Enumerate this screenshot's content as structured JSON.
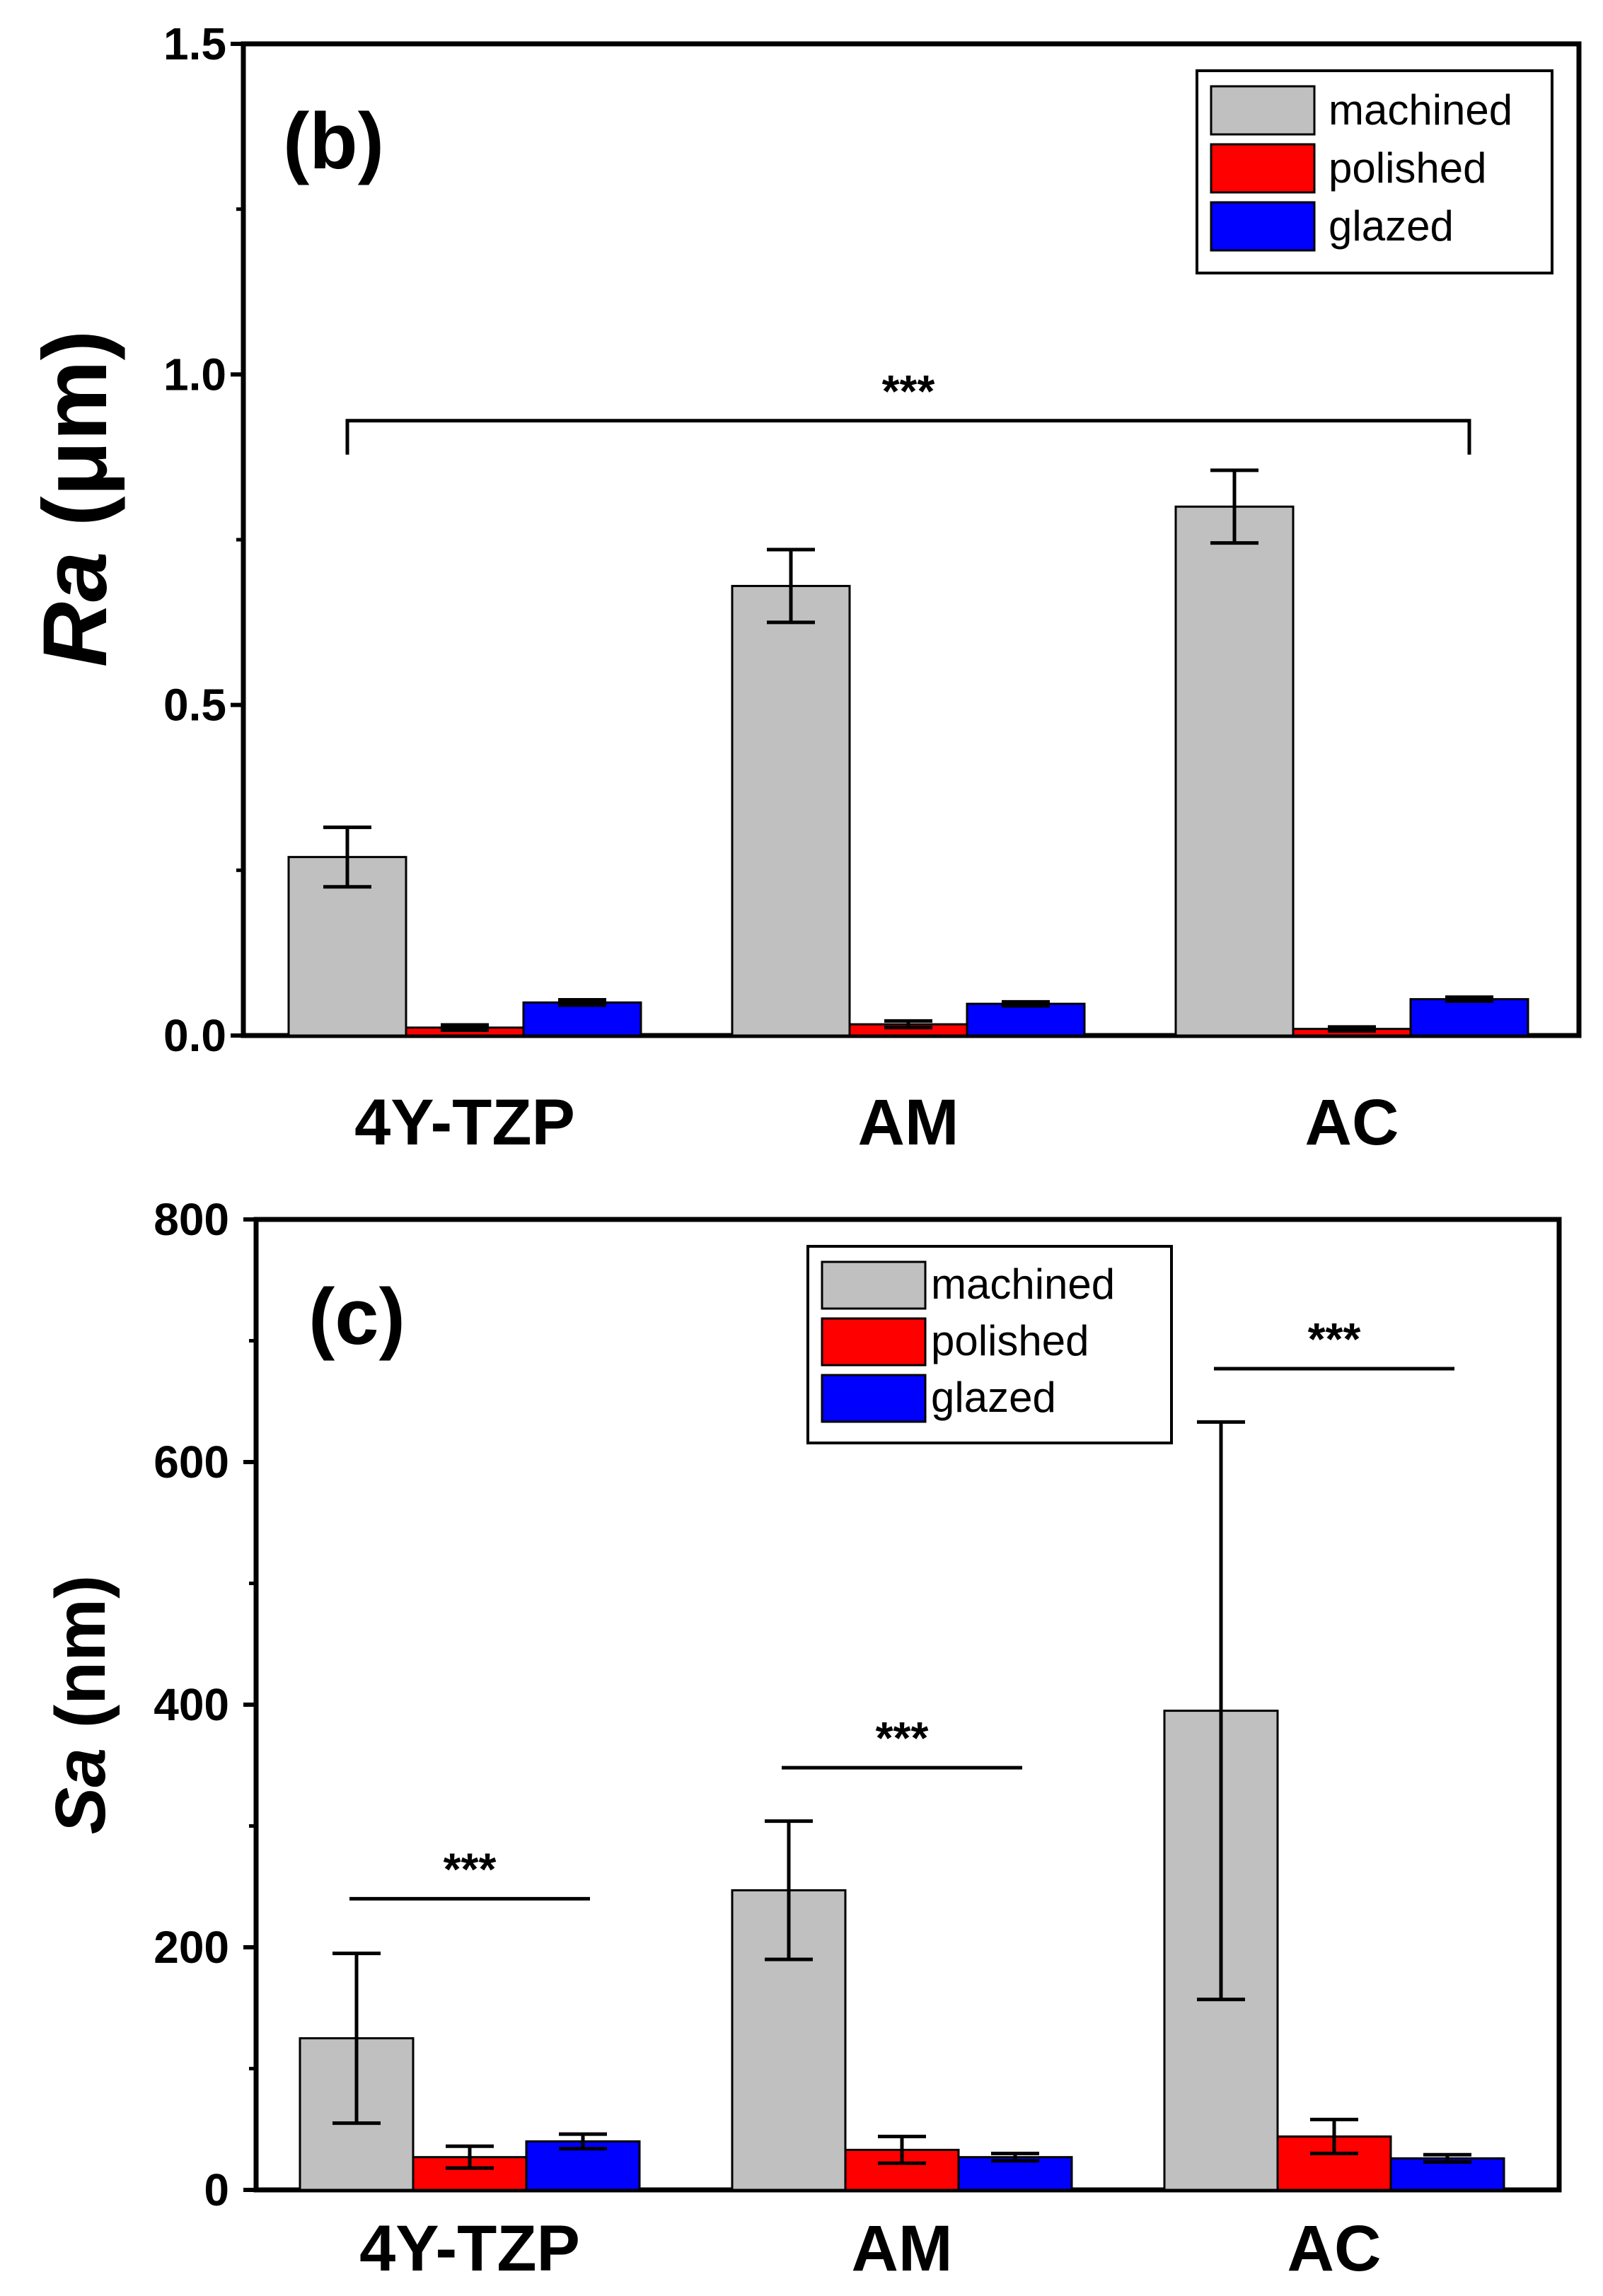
{
  "chart_data": [
    {
      "type": "bar",
      "panel_label": "(b)",
      "title": "",
      "ylabel_italic": "Ra",
      "ylabel_unit": "(μm)",
      "xlabel": "",
      "categories": [
        "4Y-TZP",
        "AM",
        "AC"
      ],
      "ylim": [
        0,
        1.5
      ],
      "yticks": [
        0,
        0.5,
        1,
        1.5
      ],
      "ytick_labels": [
        "0.0",
        "0.5",
        "1.0",
        "1.5"
      ],
      "grid": false,
      "legend_position": "top-right",
      "series": [
        {
          "name": "machined",
          "color": "#c0c0c0",
          "values": [
            0.27,
            0.68,
            0.8
          ],
          "errors": [
            0.045,
            0.055,
            0.055
          ]
        },
        {
          "name": "polished",
          "color": "#ff0000",
          "values": [
            0.012,
            0.017,
            0.01
          ],
          "errors": [
            0.004,
            0.005,
            0.003
          ]
        },
        {
          "name": "glazed",
          "color": "#0000ff",
          "values": [
            0.05,
            0.048,
            0.055
          ],
          "errors": [
            0.004,
            0.003,
            0.003
          ]
        }
      ],
      "annotations": [
        {
          "text": "***",
          "from_category": 0,
          "to_category": 2,
          "y": 0.93,
          "style": "bracket"
        }
      ]
    },
    {
      "type": "bar",
      "panel_label": "(c)",
      "title": "",
      "ylabel_italic": "Sa",
      "ylabel_unit": "(nm)",
      "xlabel": "",
      "categories": [
        "4Y-TZP",
        "AM",
        "AC"
      ],
      "ylim": [
        0,
        800
      ],
      "yticks": [
        0,
        200,
        400,
        600,
        800
      ],
      "ytick_labels": [
        "0",
        "200",
        "400",
        "600",
        "800"
      ],
      "grid": false,
      "legend_position": "top-center",
      "series": [
        {
          "name": "machined",
          "color": "#c0c0c0",
          "values": [
            125,
            247,
            395
          ],
          "errors": [
            70,
            57,
            238
          ]
        },
        {
          "name": "polished",
          "color": "#ff0000",
          "values": [
            27,
            33,
            44
          ],
          "errors": [
            9,
            11,
            14
          ]
        },
        {
          "name": "glazed",
          "color": "#0000ff",
          "values": [
            40,
            27,
            26
          ],
          "errors": [
            6,
            3,
            3
          ]
        }
      ],
      "annotations": [
        {
          "text": "***",
          "from_category": 0,
          "to_category": 0,
          "y": 240,
          "style": "line"
        },
        {
          "text": "***",
          "from_category": 1,
          "to_category": 1,
          "y": 348,
          "style": "line"
        },
        {
          "text": "***",
          "from_category": 2,
          "to_category": 2,
          "y": 677,
          "style": "line"
        }
      ]
    }
  ]
}
